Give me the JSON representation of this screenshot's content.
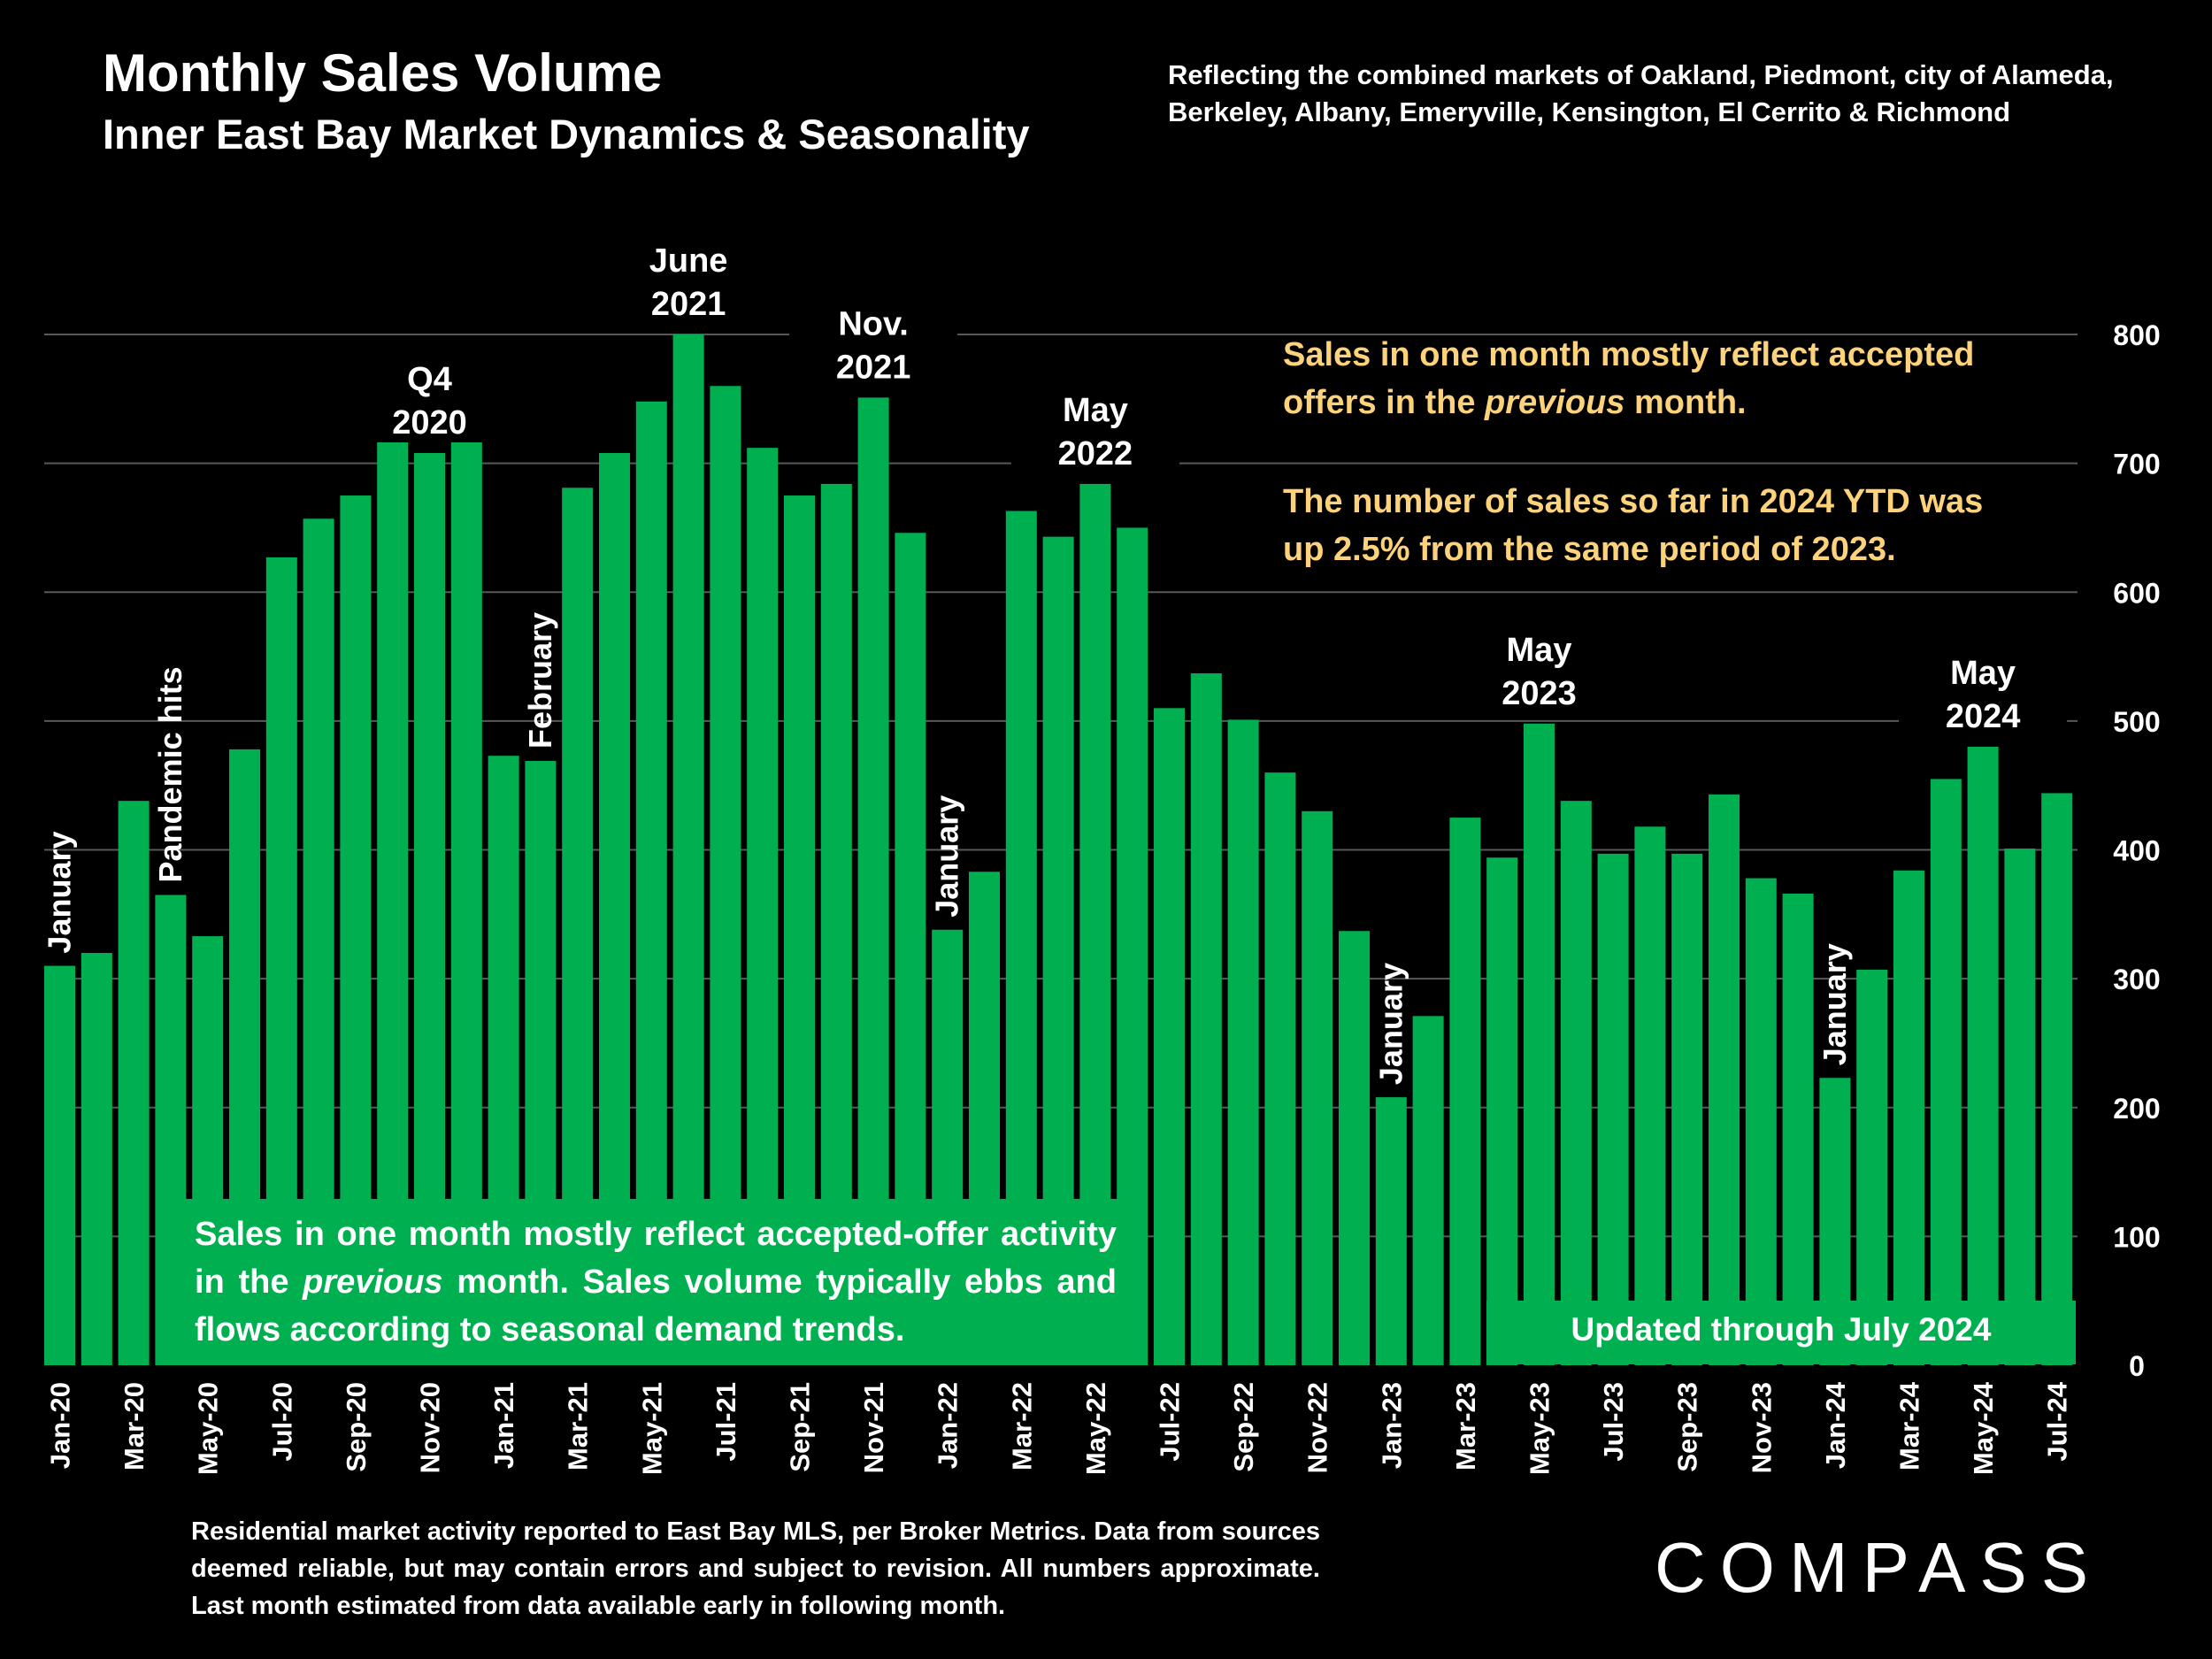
{
  "header": {
    "title": "Monthly Sales Volume",
    "subtitle": "Inner East Bay Market Dynamics & Seasonality",
    "markets_line1": "Reflecting the combined markets of Oakland, Piedmont, city of Alameda,",
    "markets_line2": "Berkeley, Albany, Emeryville, Kensington, El Cerrito & Richmond"
  },
  "notes": {
    "n1_a": "Sales in one month mostly reflect accepted",
    "n1_b_pre": "offers in the ",
    "n1_b_em": "previous",
    "n1_b_post": " month.",
    "n2_a": "The number of sales so far in 2024 YTD was",
    "n2_b": "up 2.5% from the same period of 2023."
  },
  "box": {
    "pre": "Sales in one month mostly reflect accepted-offer activity in the ",
    "em": "previous",
    "post": " month. Sales volume typically ebbs and flows according to seasonal demand trends."
  },
  "updated": "Updated through July 2024",
  "footer": "Residential market activity reported to East Bay MLS, per Broker Metrics. Data from sources deemed reliable, but may contain errors and subject to revision. All numbers approximate. Last month estimated from data available early in following month.",
  "logo": "COMPASS",
  "colors": {
    "bar": "#00b050",
    "accent_text": "#fcd27b",
    "grid": "#595959"
  },
  "chart_data": {
    "type": "bar",
    "categories": [
      "Jan-20",
      "Feb-20",
      "Mar-20",
      "Apr-20",
      "May-20",
      "Jun-20",
      "Jul-20",
      "Aug-20",
      "Sep-20",
      "Oct-20",
      "Nov-20",
      "Dec-20",
      "Jan-21",
      "Feb-21",
      "Mar-21",
      "Apr-21",
      "May-21",
      "Jun-21",
      "Jul-21",
      "Aug-21",
      "Sep-21",
      "Oct-21",
      "Nov-21",
      "Dec-21",
      "Jan-22",
      "Feb-22",
      "Mar-22",
      "Apr-22",
      "May-22",
      "Jun-22",
      "Jul-22",
      "Aug-22",
      "Sep-22",
      "Oct-22",
      "Nov-22",
      "Dec-22",
      "Jan-23",
      "Feb-23",
      "Mar-23",
      "Apr-23",
      "May-23",
      "Jun-23",
      "Jul-23",
      "Aug-23",
      "Sep-23",
      "Oct-23",
      "Nov-23",
      "Dec-23",
      "Jan-24",
      "Feb-24",
      "Mar-24",
      "Apr-24",
      "May-24",
      "Jun-24",
      "Jul-24"
    ],
    "tick_labels": [
      "Jan-20",
      "",
      "Mar-20",
      "",
      "May-20",
      "",
      "Jul-20",
      "",
      "Sep-20",
      "",
      "Nov-20",
      "",
      "Jan-21",
      "",
      "Mar-21",
      "",
      "May-21",
      "",
      "Jul-21",
      "",
      "Sep-21",
      "",
      "Nov-21",
      "",
      "Jan-22",
      "",
      "Mar-22",
      "",
      "May-22",
      "",
      "Jul-22",
      "",
      "Sep-22",
      "",
      "Nov-22",
      "",
      "Jan-23",
      "",
      "Mar-23",
      "",
      "May-23",
      "",
      "Jul-23",
      "",
      "Sep-23",
      "",
      "Nov-23",
      "",
      "Jan-24",
      "",
      "Mar-24",
      "",
      "May-24",
      "",
      "Jul-24"
    ],
    "values": [
      310,
      320,
      438,
      365,
      333,
      478,
      627,
      657,
      675,
      745,
      708,
      758,
      473,
      469,
      681,
      708,
      748,
      800,
      760,
      712,
      675,
      684,
      751,
      646,
      338,
      383,
      663,
      643,
      684,
      650,
      510,
      537,
      501,
      460,
      430,
      337,
      208,
      271,
      425,
      394,
      498,
      438,
      397,
      418,
      397,
      443,
      378,
      366,
      223,
      307,
      384,
      455,
      480,
      401,
      444
    ],
    "ylim": [
      0,
      800
    ],
    "yticks": [
      0,
      100,
      200,
      300,
      400,
      500,
      600,
      700,
      800
    ],
    "grid": true,
    "y_axis_side": "right",
    "annotations": [
      {
        "index": 0,
        "text": "January",
        "vertical": true
      },
      {
        "index": 3,
        "text": "Pandemic hits",
        "vertical": true
      },
      {
        "index": 10,
        "lines": [
          "Q4",
          "2020"
        ]
      },
      {
        "index": 13,
        "text": "February",
        "vertical": true
      },
      {
        "index": 17,
        "lines": [
          "June",
          "2021"
        ]
      },
      {
        "index": 22,
        "lines": [
          "Nov.",
          "2021"
        ]
      },
      {
        "index": 24,
        "text": "January",
        "vertical": true
      },
      {
        "index": 28,
        "lines": [
          "May",
          "2022"
        ]
      },
      {
        "index": 36,
        "text": "January",
        "vertical": true
      },
      {
        "index": 40,
        "lines": [
          "May",
          "2023"
        ]
      },
      {
        "index": 48,
        "text": "January",
        "vertical": true
      },
      {
        "index": 52,
        "lines": [
          "May",
          "2024"
        ]
      }
    ]
  }
}
